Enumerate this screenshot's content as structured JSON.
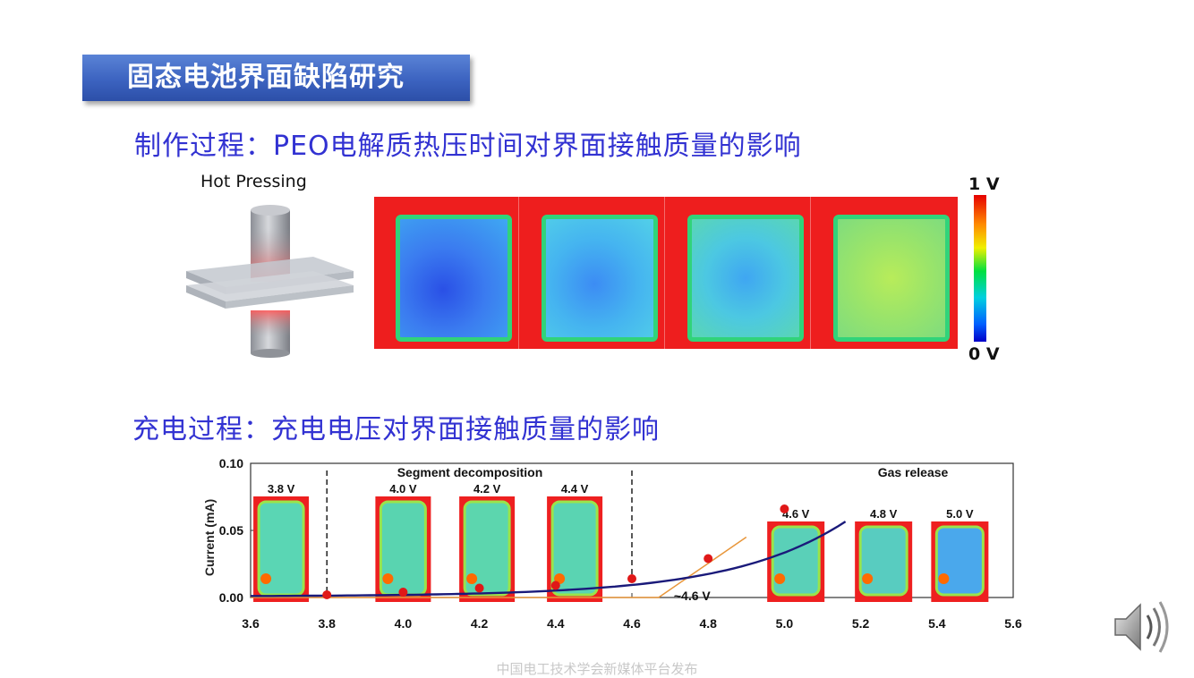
{
  "banner": {
    "title": "固态电池界面缺陷研究"
  },
  "section1": {
    "heading": "制作过程：PEO电解质热压时间对界面接触质量的影响",
    "hot_pressing_label": "Hot Pressing"
  },
  "scale": {
    "top_label": "1 V",
    "bottom_label": "0 V"
  },
  "section2": {
    "heading": "充电过程：充电电压对界面接触质量的影响"
  },
  "chart_data": {
    "type": "line",
    "ylabel": "Current (mA)",
    "xlim": [
      3.6,
      5.6
    ],
    "ylim": [
      0.0,
      0.1
    ],
    "x_ticks": [
      "3.6",
      "3.8",
      "4.0",
      "4.2",
      "4.4",
      "4.6",
      "4.8",
      "5.0",
      "5.2",
      "5.4",
      "5.6"
    ],
    "y_ticks": [
      "0.00",
      "0.05",
      "0.10"
    ],
    "annotations": {
      "segment": "Segment decomposition",
      "gas": "Gas release",
      "onset": "~4.6 V"
    },
    "markers": [
      {
        "x": 3.8,
        "y": 0.002
      },
      {
        "x": 4.0,
        "y": 0.004
      },
      {
        "x": 4.2,
        "y": 0.007
      },
      {
        "x": 4.4,
        "y": 0.009
      },
      {
        "x": 4.6,
        "y": 0.014
      },
      {
        "x": 4.8,
        "y": 0.029
      },
      {
        "x": 5.0,
        "y": 0.066
      }
    ],
    "inset_labels": [
      "3.8 V",
      "4.0 V",
      "4.2 V",
      "4.4 V",
      "4.6 V",
      "4.8 V",
      "5.0 V"
    ]
  },
  "colors": {
    "banner": "#3c63c0",
    "heading": "#3232d2",
    "curve": "#1a1a7a",
    "marker": "#e01818",
    "tangent": "#e8963a"
  },
  "footer": {
    "text": "中国电工技术学会新媒体平台发布"
  },
  "icons": {
    "speaker": "speaker-icon"
  }
}
